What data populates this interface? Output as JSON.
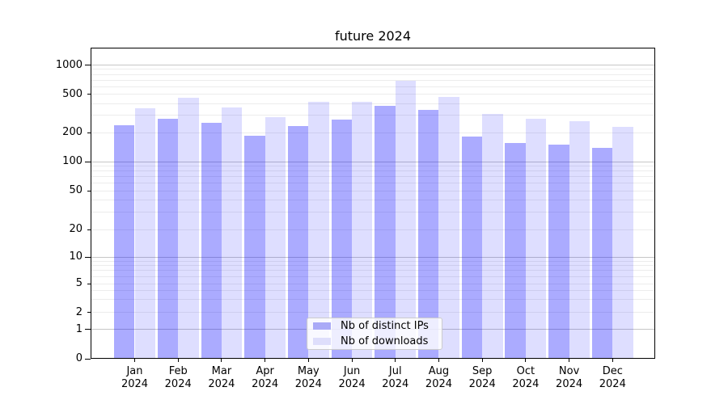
{
  "title": "future 2024",
  "colors": {
    "distinct_ips_bar": "rgba(0,0,255,0.33)",
    "downloads_bar": "rgba(0,0,255,0.13)",
    "distinct_ips_solid": "#aaaaf7",
    "downloads_solid": "#dedefb",
    "major_grid": "#c6c6c6",
    "minor_grid": "#ececec",
    "axis": "#000000",
    "legend_border": "#cccccc"
  },
  "legend": {
    "items": [
      {
        "label": "Nb of distinct IPs"
      },
      {
        "label": "Nb of downloads"
      }
    ]
  },
  "x_axis": {
    "months": [
      "Jan",
      "Feb",
      "Mar",
      "Apr",
      "May",
      "Jun",
      "Jul",
      "Aug",
      "Sep",
      "Oct",
      "Nov",
      "Dec"
    ],
    "year": "2024"
  },
  "y_axis": {
    "tick_labels": [
      "0",
      "1",
      "2",
      "5",
      "10",
      "20",
      "50",
      "100",
      "200",
      "500",
      "1000"
    ]
  },
  "chart_data": {
    "type": "bar",
    "title": "future 2024",
    "categories": [
      "Jan 2024",
      "Feb 2024",
      "Mar 2024",
      "Apr 2024",
      "May 2024",
      "Jun 2024",
      "Jul 2024",
      "Aug 2024",
      "Sep 2024",
      "Oct 2024",
      "Nov 2024",
      "Dec 2024"
    ],
    "series": [
      {
        "name": "Nb of distinct IPs",
        "values": [
          240,
          280,
          250,
          185,
          235,
          270,
          380,
          340,
          180,
          155,
          150,
          140
        ]
      },
      {
        "name": "Nb of downloads",
        "values": [
          355,
          460,
          365,
          290,
          420,
          415,
          690,
          470,
          310,
          280,
          260,
          230
        ]
      }
    ],
    "yscale": "symlog",
    "y_ticks": [
      0,
      1,
      2,
      5,
      10,
      20,
      50,
      100,
      200,
      500,
      1000
    ],
    "ylim": [
      0,
      1500
    ],
    "xlabel": "",
    "ylabel": "",
    "grid": true,
    "legend_position": "lower center (inside axes)"
  }
}
